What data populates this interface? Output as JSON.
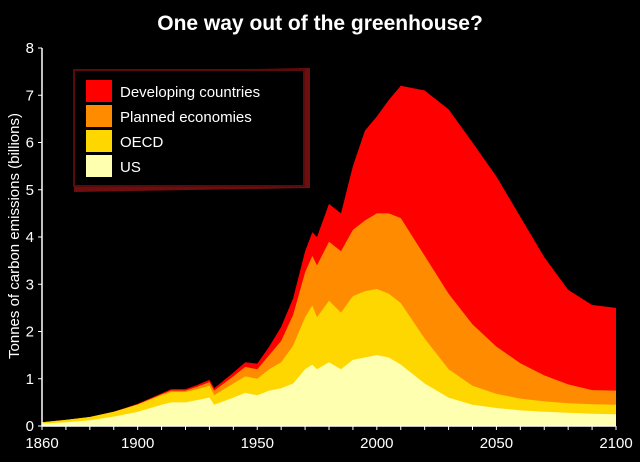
{
  "colors": {
    "background": "#000000",
    "developing": "#ff0000",
    "planned": "#ff8c00",
    "oecd": "#ffd700",
    "us": "#ffffb0",
    "legend_frame": "#7a1010",
    "axis": "#ffffff"
  },
  "chart_data": {
    "type": "area",
    "stacked": true,
    "title": "One way out of the greenhouse?",
    "xlabel": "",
    "ylabel": "Tonnes of carbon emissions (billions)",
    "xlim": [
      1860,
      2100
    ],
    "ylim": [
      0,
      8
    ],
    "x_ticks": [
      1860,
      1900,
      1950,
      2000,
      2050,
      2100
    ],
    "y_ticks": [
      0,
      1,
      2,
      3,
      4,
      5,
      6,
      7,
      8
    ],
    "legend_position": "top-left",
    "x": [
      1860,
      1870,
      1880,
      1890,
      1900,
      1910,
      1914,
      1920,
      1925,
      1930,
      1932,
      1940,
      1945,
      1950,
      1955,
      1960,
      1965,
      1970,
      1973,
      1975,
      1980,
      1985,
      1990,
      1995,
      2000,
      2005,
      2010,
      2020,
      2030,
      2040,
      2050,
      2060,
      2070,
      2080,
      2090,
      2100
    ],
    "series": [
      {
        "name": "US",
        "values": [
          0.05,
          0.08,
          0.12,
          0.2,
          0.3,
          0.45,
          0.5,
          0.5,
          0.55,
          0.6,
          0.45,
          0.6,
          0.7,
          0.65,
          0.75,
          0.8,
          0.9,
          1.2,
          1.3,
          1.2,
          1.35,
          1.2,
          1.4,
          1.45,
          1.5,
          1.45,
          1.3,
          0.9,
          0.6,
          0.45,
          0.38,
          0.33,
          0.3,
          0.28,
          0.26,
          0.25
        ]
      },
      {
        "name": "OECD",
        "values": [
          0.03,
          0.05,
          0.07,
          0.1,
          0.15,
          0.2,
          0.22,
          0.22,
          0.23,
          0.25,
          0.2,
          0.3,
          0.35,
          0.35,
          0.45,
          0.55,
          0.8,
          1.1,
          1.25,
          1.1,
          1.3,
          1.2,
          1.35,
          1.4,
          1.4,
          1.35,
          1.3,
          0.95,
          0.6,
          0.4,
          0.3,
          0.25,
          0.22,
          0.2,
          0.2,
          0.2
        ]
      },
      {
        "name": "Planned economies",
        "values": [
          0.0,
          0.0,
          0.0,
          0.0,
          0.01,
          0.02,
          0.03,
          0.03,
          0.05,
          0.08,
          0.1,
          0.15,
          0.2,
          0.2,
          0.3,
          0.45,
          0.65,
          0.95,
          1.05,
          1.1,
          1.25,
          1.3,
          1.4,
          1.5,
          1.6,
          1.7,
          1.8,
          1.75,
          1.6,
          1.3,
          1.0,
          0.75,
          0.55,
          0.4,
          0.3,
          0.3
        ]
      },
      {
        "name": "Developing countries",
        "values": [
          0.0,
          0.0,
          0.0,
          0.0,
          0.01,
          0.02,
          0.03,
          0.03,
          0.04,
          0.05,
          0.05,
          0.08,
          0.1,
          0.12,
          0.18,
          0.3,
          0.35,
          0.45,
          0.5,
          0.6,
          0.8,
          0.8,
          1.35,
          1.9,
          2.05,
          2.4,
          2.8,
          3.5,
          3.9,
          3.85,
          3.6,
          3.1,
          2.5,
          2.0,
          1.8,
          1.75
        ]
      }
    ],
    "legend": [
      "Developing countries",
      "Planned economies",
      "OECD",
      "US"
    ]
  }
}
